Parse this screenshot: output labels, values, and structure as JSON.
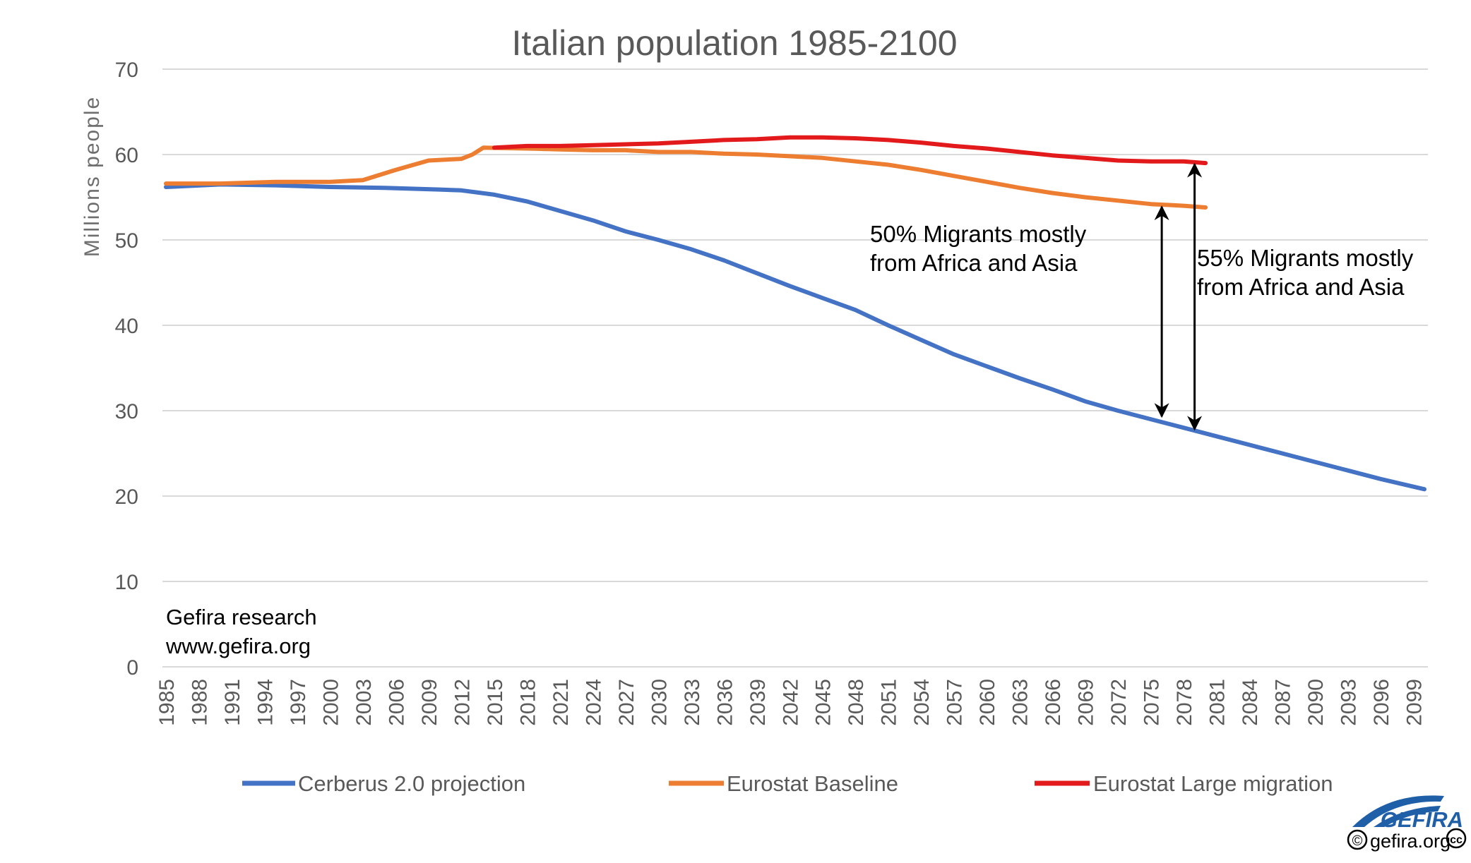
{
  "colors": {
    "cerberus": "#4472c4",
    "baseline": "#ed7d31",
    "large_migration": "#e31a1c",
    "grid": "#d9d9d9",
    "text": "#595959",
    "logo": "#1f5fa8"
  },
  "chart_data": {
    "type": "line",
    "title": "Italian population 1985-2100",
    "xlabel": "",
    "ylabel": "Millions people",
    "ylim": [
      0,
      70
    ],
    "yticks": [
      "0",
      "10",
      "20",
      "30",
      "40",
      "50",
      "60",
      "70"
    ],
    "xlim": [
      1985,
      2100
    ],
    "xticks": [
      "1985",
      "1988",
      "1991",
      "1994",
      "1997",
      "2000",
      "2003",
      "2006",
      "2009",
      "2012",
      "2015",
      "2018",
      "2021",
      "2024",
      "2027",
      "2030",
      "2033",
      "2036",
      "2039",
      "2042",
      "2045",
      "2048",
      "2051",
      "2054",
      "2057",
      "2060",
      "2063",
      "2066",
      "2069",
      "2072",
      "2075",
      "2078",
      "2081",
      "2084",
      "2087",
      "2090",
      "2093",
      "2096",
      "2099"
    ],
    "grid": true,
    "legend_position": "bottom",
    "series": [
      {
        "name": "Cerberus 2.0 projection",
        "color": "#4472c4",
        "points": [
          [
            1985,
            56.2
          ],
          [
            1990,
            56.5
          ],
          [
            1995,
            56.4
          ],
          [
            2000,
            56.2
          ],
          [
            2005,
            56.1
          ],
          [
            2010,
            55.9
          ],
          [
            2012,
            55.8
          ],
          [
            2015,
            55.3
          ],
          [
            2018,
            54.5
          ],
          [
            2021,
            53.4
          ],
          [
            2024,
            52.3
          ],
          [
            2027,
            51.0
          ],
          [
            2030,
            50.0
          ],
          [
            2033,
            48.9
          ],
          [
            2036,
            47.6
          ],
          [
            2039,
            46.1
          ],
          [
            2042,
            44.6
          ],
          [
            2045,
            43.2
          ],
          [
            2048,
            41.8
          ],
          [
            2051,
            40.0
          ],
          [
            2054,
            38.3
          ],
          [
            2057,
            36.6
          ],
          [
            2060,
            35.2
          ],
          [
            2063,
            33.8
          ],
          [
            2066,
            32.5
          ],
          [
            2069,
            31.1
          ],
          [
            2072,
            30.0
          ],
          [
            2075,
            29.0
          ],
          [
            2078,
            28.0
          ],
          [
            2081,
            27.0
          ],
          [
            2084,
            26.0
          ],
          [
            2087,
            25.0
          ],
          [
            2090,
            24.0
          ],
          [
            2093,
            23.0
          ],
          [
            2096,
            22.0
          ],
          [
            2100,
            20.8
          ]
        ]
      },
      {
        "name": "Eurostat Baseline",
        "color": "#ed7d31",
        "points": [
          [
            1985,
            56.6
          ],
          [
            1990,
            56.6
          ],
          [
            1995,
            56.8
          ],
          [
            2000,
            56.8
          ],
          [
            2003,
            57.0
          ],
          [
            2006,
            58.2
          ],
          [
            2009,
            59.3
          ],
          [
            2012,
            59.5
          ],
          [
            2013,
            60.0
          ],
          [
            2014,
            60.8
          ],
          [
            2018,
            60.7
          ],
          [
            2021,
            60.6
          ],
          [
            2024,
            60.5
          ],
          [
            2027,
            60.5
          ],
          [
            2030,
            60.3
          ],
          [
            2033,
            60.3
          ],
          [
            2036,
            60.1
          ],
          [
            2039,
            60.0
          ],
          [
            2042,
            59.8
          ],
          [
            2045,
            59.6
          ],
          [
            2048,
            59.2
          ],
          [
            2051,
            58.8
          ],
          [
            2054,
            58.2
          ],
          [
            2057,
            57.5
          ],
          [
            2060,
            56.8
          ],
          [
            2063,
            56.1
          ],
          [
            2066,
            55.5
          ],
          [
            2069,
            55.0
          ],
          [
            2072,
            54.6
          ],
          [
            2075,
            54.2
          ],
          [
            2078,
            54.0
          ],
          [
            2080,
            53.8
          ]
        ]
      },
      {
        "name": "Eurostat Large migration",
        "color": "#e31a1c",
        "points": [
          [
            2015,
            60.8
          ],
          [
            2018,
            61.0
          ],
          [
            2021,
            61.0
          ],
          [
            2024,
            61.1
          ],
          [
            2027,
            61.2
          ],
          [
            2030,
            61.3
          ],
          [
            2033,
            61.5
          ],
          [
            2036,
            61.7
          ],
          [
            2039,
            61.8
          ],
          [
            2042,
            62.0
          ],
          [
            2045,
            62.0
          ],
          [
            2048,
            61.9
          ],
          [
            2051,
            61.7
          ],
          [
            2054,
            61.4
          ],
          [
            2057,
            61.0
          ],
          [
            2060,
            60.7
          ],
          [
            2063,
            60.3
          ],
          [
            2066,
            59.9
          ],
          [
            2069,
            59.6
          ],
          [
            2072,
            59.3
          ],
          [
            2075,
            59.2
          ],
          [
            2078,
            59.2
          ],
          [
            2080,
            59.0
          ]
        ]
      }
    ],
    "annotations": [
      {
        "lines": [
          "50% Migrants mostly",
          "from Africa and Asia"
        ],
        "year": 2076,
        "from": 54.2,
        "to": 29.0
      },
      {
        "lines": [
          "55% Migrants mostly",
          "from Africa and Asia"
        ],
        "year": 2079,
        "from": 59.2,
        "to": 27.5
      }
    ]
  },
  "credit": {
    "line1": "Gefira research",
    "line2": "www.gefira.org"
  },
  "logo": {
    "brand": "GEFIRA",
    "site": "gefira.org",
    "copyright_symbol": "©",
    "cc_symbol": "cc"
  }
}
